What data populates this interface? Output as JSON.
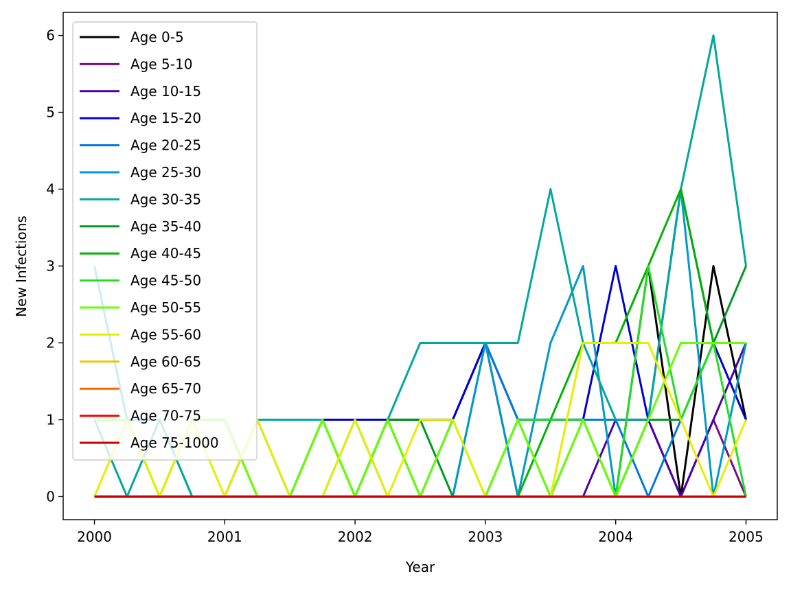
{
  "chart_data": {
    "type": "line",
    "title": "",
    "xlabel": "Year",
    "ylabel": "New Infections",
    "xlim": [
      1999.76,
      2005.24
    ],
    "ylim": [
      -0.3,
      6.3
    ],
    "xticks": [
      2000,
      2001,
      2002,
      2003,
      2004,
      2005
    ],
    "yticks": [
      0,
      1,
      2,
      3,
      4,
      5,
      6
    ],
    "grid": false,
    "legend_position": "upper-left",
    "x": [
      2000,
      2000.25,
      2000.5,
      2000.75,
      2001,
      2001.25,
      2001.5,
      2001.75,
      2002,
      2002.25,
      2002.5,
      2002.75,
      2003,
      2003.25,
      2003.5,
      2003.75,
      2004,
      2004.25,
      2004.5,
      2004.75,
      2005
    ],
    "series": [
      {
        "name": "Age 0-5",
        "color": "#000000",
        "values": [
          0,
          0,
          0,
          0,
          0,
          0,
          0,
          0,
          0,
          1,
          1,
          1,
          2,
          0,
          0,
          0,
          0,
          3,
          0,
          3,
          1
        ]
      },
      {
        "name": "Age 5-10",
        "color": "#7a0a8c",
        "values": [
          0,
          0,
          0,
          0,
          0,
          0,
          0,
          0,
          0,
          0,
          0,
          0,
          0,
          0,
          0,
          0,
          0,
          1,
          0,
          1,
          0
        ]
      },
      {
        "name": "Age 10-15",
        "color": "#4b00a8",
        "values": [
          0,
          0,
          0,
          0,
          0,
          0,
          0,
          0,
          0,
          0,
          0,
          0,
          0,
          0,
          0,
          0,
          1,
          1,
          0,
          1,
          2
        ]
      },
      {
        "name": "Age 15-20",
        "color": "#0000cc",
        "values": [
          0,
          0,
          0,
          0,
          0,
          0,
          0,
          1,
          1,
          1,
          0,
          1,
          2,
          1,
          1,
          1,
          3,
          1,
          4,
          2,
          1
        ]
      },
      {
        "name": "Age 20-25",
        "color": "#0077dd",
        "values": [
          0,
          0,
          0,
          0,
          0,
          0,
          0,
          0,
          0,
          0,
          0,
          0,
          2,
          1,
          1,
          1,
          1,
          0,
          1,
          2,
          2
        ]
      },
      {
        "name": "Age 25-30",
        "color": "#0099cc",
        "values": [
          3,
          1,
          1,
          0,
          0,
          1,
          0,
          0,
          1,
          0,
          0,
          0,
          2,
          0,
          2,
          3,
          0,
          1,
          4,
          0,
          2
        ]
      },
      {
        "name": "Age 30-35",
        "color": "#00a899",
        "values": [
          1,
          0,
          1,
          0,
          0,
          1,
          1,
          1,
          0,
          1,
          2,
          2,
          2,
          2,
          4,
          2,
          1,
          1,
          4,
          6,
          3
        ]
      },
      {
        "name": "Age 35-40",
        "color": "#009922",
        "values": [
          0,
          0,
          0,
          0,
          0,
          0,
          0,
          1,
          0,
          1,
          1,
          0,
          0,
          1,
          0,
          1,
          0,
          1,
          1,
          2,
          3
        ]
      },
      {
        "name": "Age 40-45",
        "color": "#00b300",
        "values": [
          0,
          0,
          0,
          0,
          0,
          0,
          0,
          0,
          0,
          0,
          0,
          0,
          0,
          0,
          1,
          2,
          2,
          3,
          4,
          2,
          2
        ]
      },
      {
        "name": "Age 45-50",
        "color": "#22dd22",
        "values": [
          1,
          1,
          0,
          1,
          1,
          0,
          0,
          1,
          0,
          1,
          0,
          0,
          0,
          1,
          1,
          1,
          0,
          3,
          1,
          2,
          0
        ]
      },
      {
        "name": "Age 50-55",
        "color": "#66ff00",
        "values": [
          1,
          1,
          0,
          1,
          1,
          0,
          0,
          1,
          0,
          1,
          0,
          1,
          0,
          1,
          0,
          1,
          0,
          1,
          2,
          2,
          2
        ]
      },
      {
        "name": "Age 55-60",
        "color": "#e6ee00",
        "values": [
          0,
          1,
          0,
          1,
          0,
          1,
          0,
          0,
          1,
          0,
          1,
          1,
          0,
          0,
          0,
          2,
          2,
          2,
          1,
          0,
          1
        ]
      },
      {
        "name": "Age 60-65",
        "color": "#f2c400",
        "values": [
          0,
          0,
          0,
          0,
          0,
          0,
          0,
          0,
          0,
          0,
          0,
          0,
          0,
          0,
          0,
          0,
          0,
          0,
          0,
          0,
          0
        ]
      },
      {
        "name": "Age 65-70",
        "color": "#ff6600",
        "values": [
          0,
          0,
          0,
          0,
          0,
          0,
          0,
          0,
          0,
          0,
          0,
          0,
          0,
          0,
          0,
          0,
          0,
          0,
          0,
          0,
          0
        ]
      },
      {
        "name": "Age 70-75",
        "color": "#ff0000",
        "values": [
          0,
          0,
          0,
          0,
          0,
          0,
          0,
          0,
          0,
          0,
          0,
          0,
          0,
          0,
          0,
          0,
          0,
          0,
          0,
          0,
          0
        ]
      },
      {
        "name": "Age 75-1000",
        "color": "#cc0000",
        "values": [
          0,
          0,
          0,
          0,
          0,
          0,
          0,
          0,
          0,
          0,
          0,
          0,
          0,
          0,
          0,
          0,
          0,
          0,
          0,
          0,
          0
        ]
      }
    ]
  }
}
